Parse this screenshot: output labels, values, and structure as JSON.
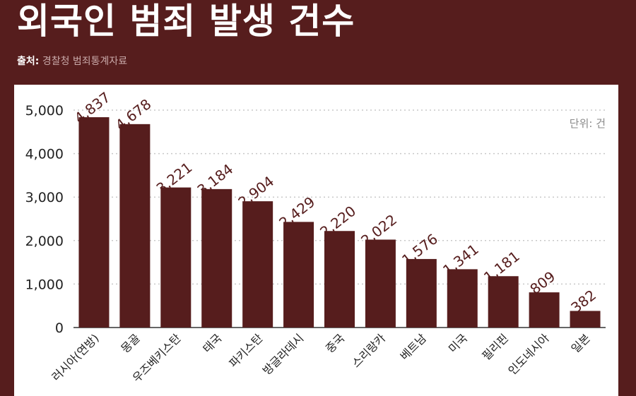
{
  "header": {
    "title": "외국인 범죄 발생 건수",
    "source_label": "출처:",
    "source_text": "경찰청 범죄통계자료"
  },
  "unit_label": "단위: 건",
  "colors": {
    "background": "#561d1d",
    "bar": "#561d1d",
    "panel": "#ffffff",
    "grid": "#c8c8c8"
  },
  "chart_data": {
    "type": "bar",
    "categories": [
      "러시아(연방)",
      "몽골",
      "우즈베키스탄",
      "태국",
      "파키스탄",
      "방글라데시",
      "중국",
      "스리랑카",
      "베트남",
      "미국",
      "필리핀",
      "인도네시아",
      "일본"
    ],
    "values": [
      4837,
      4678,
      3221,
      3184,
      2904,
      2429,
      2220,
      2022,
      1576,
      1341,
      1181,
      809,
      382
    ],
    "value_labels": [
      "4,837",
      "4,678",
      "3,221",
      "3,184",
      "2,904",
      "2,429",
      "2,220",
      "2,022",
      "1,576",
      "1,341",
      "1,181",
      "809",
      "382"
    ],
    "y_ticks": [
      0,
      1000,
      2000,
      3000,
      4000,
      5000
    ],
    "y_tick_labels": [
      "0",
      "1,000",
      "2,000",
      "3,000",
      "4,000",
      "5,000"
    ],
    "ylim": [
      0,
      5000
    ],
    "grid": true,
    "title": "외국인 범죄 발생 건수",
    "xlabel": "",
    "ylabel": ""
  }
}
